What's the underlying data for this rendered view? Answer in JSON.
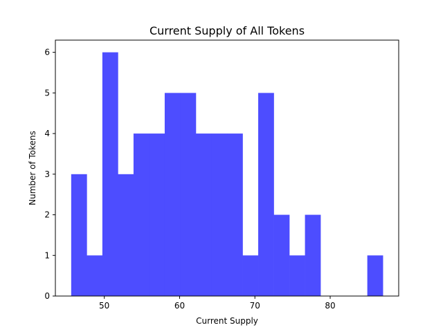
{
  "chart_data": {
    "type": "bar",
    "title": "Current Supply of All Tokens",
    "xlabel": "Current Supply",
    "ylabel": "Number of Tokens",
    "bin_edges": [
      45.6,
      47.67,
      49.74,
      51.81,
      53.88,
      55.95,
      58.02,
      60.09,
      62.16,
      64.23,
      66.3,
      68.37,
      70.44,
      72.51,
      74.58,
      76.65,
      78.72,
      80.79,
      82.86,
      84.93,
      87.0
    ],
    "counts": [
      3,
      1,
      6,
      3,
      4,
      4,
      5,
      5,
      4,
      4,
      4,
      1,
      5,
      2,
      1,
      2,
      0,
      0,
      0,
      1
    ],
    "xlim": [
      43.5,
      89.1
    ],
    "ylim": [
      0,
      6.3
    ],
    "xticks": [
      50,
      60,
      70,
      80
    ],
    "yticks": [
      0,
      1,
      2,
      3,
      4,
      5,
      6
    ],
    "bar_color": "#4d4dff",
    "grid": false,
    "legend": "none"
  }
}
